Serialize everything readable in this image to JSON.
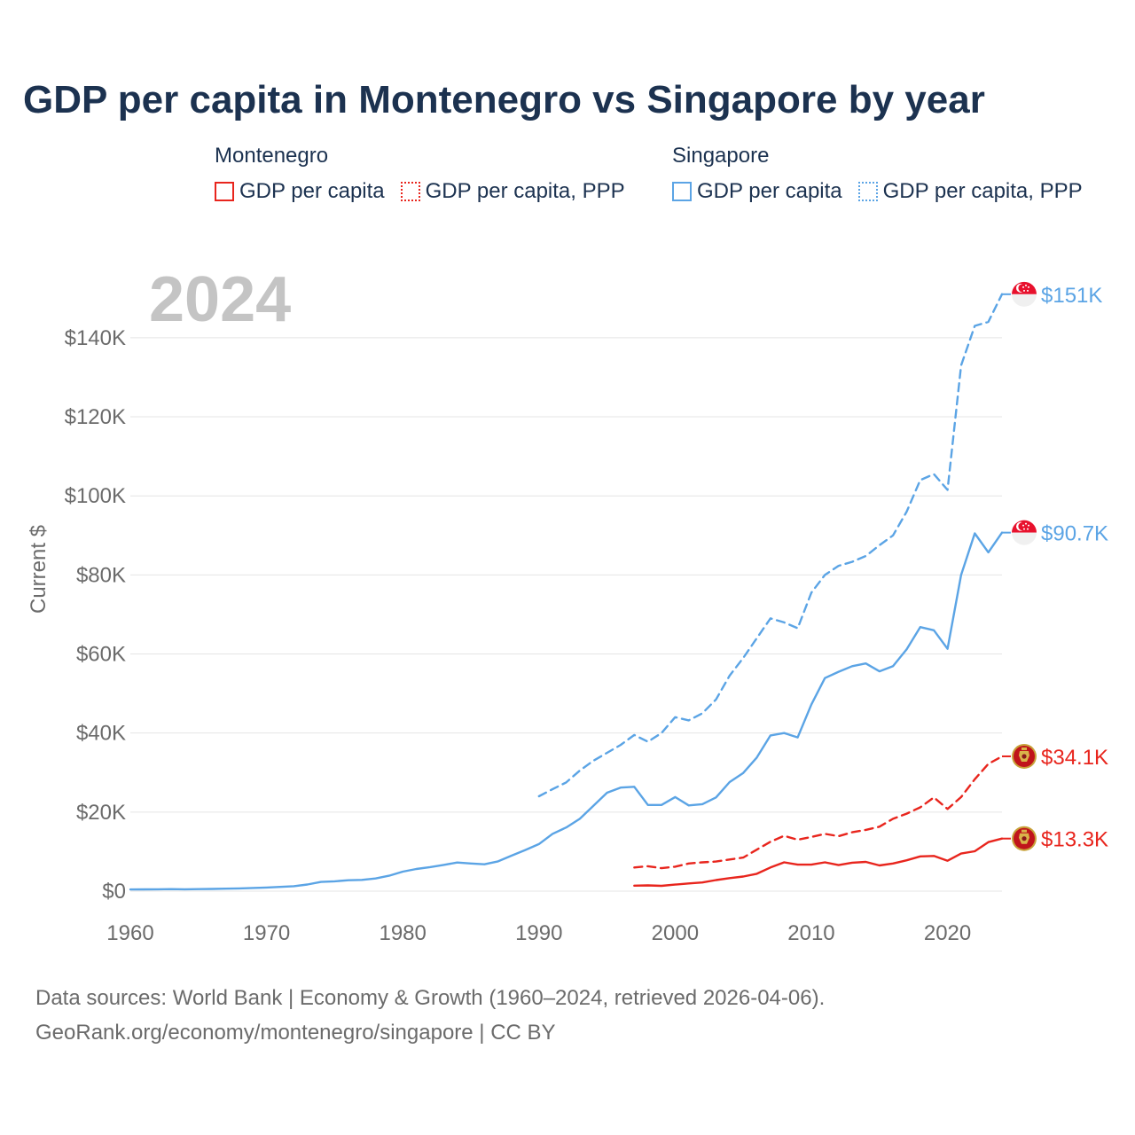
{
  "chart_data": {
    "type": "line",
    "title": "GDP per capita in Montenegro vs Singapore by year",
    "year_label": "2024",
    "ylabel": "Current $",
    "xlabel": "",
    "xlim": [
      1960,
      2024
    ],
    "ylim": [
      0,
      155000
    ],
    "x_ticks": [
      1960,
      1970,
      1980,
      1990,
      2000,
      2010,
      2020
    ],
    "x_tick_labels": [
      "1960",
      "1970",
      "1980",
      "1990",
      "2000",
      "2010",
      "2020"
    ],
    "y_ticks": [
      0,
      20000,
      40000,
      60000,
      80000,
      100000,
      120000,
      140000
    ],
    "y_tick_labels": [
      "$0",
      "$20K",
      "$40K",
      "$60K",
      "$80K",
      "$100K",
      "$120K",
      "$140K"
    ],
    "grid": true,
    "legend": [
      {
        "country": "Montenegro",
        "items": [
          "GDP per capita",
          "GDP per capita, PPP"
        ],
        "color": "#e8251d"
      },
      {
        "country": "Singapore",
        "items": [
          "GDP per capita",
          "GDP per capita, PPP"
        ],
        "color": "#5ba4e5"
      }
    ],
    "series": [
      {
        "name": "Singapore GDP per capita, PPP",
        "country": "Singapore",
        "style": "dashed",
        "color": "#5ba4e5",
        "end_label": "$151K",
        "x": [
          1990,
          1991,
          1992,
          1993,
          1994,
          1995,
          1996,
          1997,
          1998,
          1999,
          2000,
          2001,
          2002,
          2003,
          2004,
          2005,
          2006,
          2007,
          2008,
          2009,
          2010,
          2011,
          2012,
          2013,
          2014,
          2015,
          2016,
          2017,
          2018,
          2019,
          2020,
          2021,
          2022,
          2023,
          2024
        ],
        "values": [
          24000,
          25800,
          27500,
          30500,
          33000,
          35000,
          37000,
          39500,
          37800,
          40000,
          44000,
          43200,
          45000,
          48500,
          54500,
          59000,
          64000,
          69000,
          68000,
          66500,
          75500,
          80000,
          82300,
          83300,
          84800,
          87500,
          90000,
          96000,
          104000,
          105500,
          101500,
          133000,
          143000,
          144000,
          151000
        ]
      },
      {
        "name": "Singapore GDP per capita",
        "country": "Singapore",
        "style": "solid",
        "color": "#5ba4e5",
        "end_label": "$90.7K",
        "x": [
          1960,
          1961,
          1962,
          1963,
          1964,
          1965,
          1966,
          1967,
          1968,
          1969,
          1970,
          1971,
          1972,
          1973,
          1974,
          1975,
          1976,
          1977,
          1978,
          1979,
          1980,
          1981,
          1982,
          1983,
          1984,
          1985,
          1986,
          1987,
          1988,
          1989,
          1990,
          1991,
          1992,
          1993,
          1994,
          1995,
          1996,
          1997,
          1998,
          1999,
          2000,
          2001,
          2002,
          2003,
          2004,
          2005,
          2006,
          2007,
          2008,
          2009,
          2010,
          2011,
          2012,
          2013,
          2014,
          2015,
          2016,
          2017,
          2018,
          2019,
          2020,
          2021,
          2022,
          2023,
          2024
        ],
        "values": [
          430,
          450,
          480,
          510,
          480,
          520,
          560,
          630,
          700,
          810,
          930,
          1070,
          1260,
          1690,
          2340,
          2490,
          2770,
          2850,
          3210,
          3900,
          4930,
          5600,
          6080,
          6650,
          7240,
          7000,
          6800,
          7540,
          9000,
          10400,
          11900,
          14500,
          16100,
          18300,
          21600,
          24900,
          26200,
          26400,
          21800,
          21800,
          23800,
          21700,
          22000,
          23700,
          27600,
          29900,
          33800,
          39400,
          40000,
          38900,
          47200,
          53900,
          55500,
          56900,
          57600,
          55600,
          56900,
          61200,
          66800,
          66000,
          61300,
          80000,
          90500,
          85700,
          90700
        ]
      },
      {
        "name": "Montenegro GDP per capita, PPP",
        "country": "Montenegro",
        "style": "dashed",
        "color": "#e8251d",
        "end_label": "$34.1K",
        "x": [
          1997,
          1998,
          1999,
          2000,
          2001,
          2002,
          2003,
          2004,
          2005,
          2006,
          2007,
          2008,
          2009,
          2010,
          2011,
          2012,
          2013,
          2014,
          2015,
          2016,
          2017,
          2018,
          2019,
          2020,
          2021,
          2022,
          2023,
          2024
        ],
        "values": [
          6000,
          6300,
          5800,
          6200,
          7000,
          7300,
          7500,
          8000,
          8500,
          10500,
          12500,
          14000,
          13000,
          13700,
          14500,
          13900,
          14900,
          15500,
          16300,
          18300,
          19600,
          21200,
          23700,
          20800,
          23800,
          28300,
          32200,
          34100
        ]
      },
      {
        "name": "Montenegro GDP per capita",
        "country": "Montenegro",
        "style": "solid",
        "color": "#e8251d",
        "end_label": "$13.3K",
        "x": [
          1997,
          1998,
          1999,
          2000,
          2001,
          2002,
          2003,
          2004,
          2005,
          2006,
          2007,
          2008,
          2009,
          2010,
          2011,
          2012,
          2013,
          2014,
          2015,
          2016,
          2017,
          2018,
          2019,
          2020,
          2021,
          2022,
          2023,
          2024
        ],
        "values": [
          1400,
          1450,
          1350,
          1650,
          1950,
          2200,
          2800,
          3300,
          3700,
          4400,
          6000,
          7300,
          6700,
          6700,
          7300,
          6600,
          7200,
          7400,
          6500,
          7000,
          7800,
          8800,
          8900,
          7700,
          9500,
          10100,
          12400,
          13300
        ]
      }
    ]
  },
  "legend": {
    "montenegro": {
      "title": "Montenegro",
      "item1": "GDP per capita",
      "item2": "GDP per capita, PPP",
      "color": "#e8251d"
    },
    "singapore": {
      "title": "Singapore",
      "item1": "GDP per capita",
      "item2": "GDP per capita, PPP",
      "color": "#5ba4e5"
    }
  },
  "footer": {
    "line1": "Data sources: World Bank | Economy & Growth (1960–2024, retrieved 2026-04-06).",
    "line2": "GeoRank.org/economy/montenegro/singapore | CC BY"
  },
  "colors": {
    "montenegro": "#e8251d",
    "singapore": "#5ba4e5",
    "title": "#1c3250",
    "axis_text": "#6b6b6b",
    "grid": "#e4e4e4",
    "year_watermark": "#c4c4c4"
  }
}
